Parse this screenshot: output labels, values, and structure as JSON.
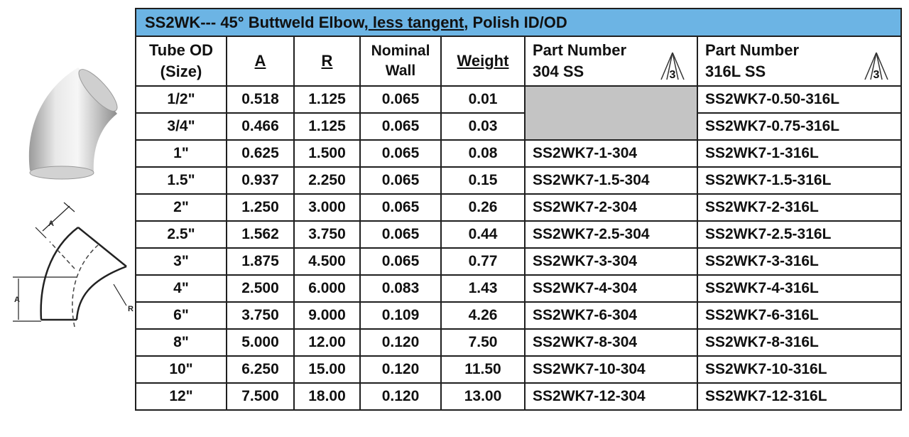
{
  "title": {
    "prefix": "SS2WK--- 45° Buttweld Elbow,",
    "underlined": " less tangent",
    "suffix": ", Polish ID/OD"
  },
  "headers": {
    "tube_od_line1": "Tube OD",
    "tube_od_line2": "(Size)",
    "a": "A",
    "r": "R",
    "wall_line1": "Nominal",
    "wall_line2": "Wall",
    "weight": "Weight",
    "pn304_line1": "Part Number",
    "pn304_line2": "304 SS",
    "pn316_line1": "Part Number",
    "pn316_line2": "316L SS",
    "a3_mark": "3"
  },
  "diagram_labels": {
    "a_top": "A",
    "a_left": "A",
    "r": "R"
  },
  "rows": [
    {
      "size": "1/2\"",
      "a": "0.518",
      "r": "1.125",
      "wall": "0.065",
      "weight": "0.01",
      "pn304": "",
      "pn316": "SS2WK7-0.50-316L"
    },
    {
      "size": "3/4\"",
      "a": "0.466",
      "r": "1.125",
      "wall": "0.065",
      "weight": "0.03",
      "pn304": "",
      "pn316": "SS2WK7-0.75-316L"
    },
    {
      "size": "1\"",
      "a": "0.625",
      "r": "1.500",
      "wall": "0.065",
      "weight": "0.08",
      "pn304": "SS2WK7-1-304",
      "pn316": "SS2WK7-1-316L"
    },
    {
      "size": "1.5\"",
      "a": "0.937",
      "r": "2.250",
      "wall": "0.065",
      "weight": "0.15",
      "pn304": "SS2WK7-1.5-304",
      "pn316": "SS2WK7-1.5-316L"
    },
    {
      "size": "2\"",
      "a": "1.250",
      "r": "3.000",
      "wall": "0.065",
      "weight": "0.26",
      "pn304": "SS2WK7-2-304",
      "pn316": "SS2WK7-2-316L"
    },
    {
      "size": "2.5\"",
      "a": "1.562",
      "r": "3.750",
      "wall": "0.065",
      "weight": "0.44",
      "pn304": "SS2WK7-2.5-304",
      "pn316": "SS2WK7-2.5-316L"
    },
    {
      "size": "3\"",
      "a": "1.875",
      "r": "4.500",
      "wall": "0.065",
      "weight": "0.77",
      "pn304": "SS2WK7-3-304",
      "pn316": "SS2WK7-3-316L"
    },
    {
      "size": "4\"",
      "a": "2.500",
      "r": "6.000",
      "wall": "0.083",
      "weight": "1.43",
      "pn304": "SS2WK7-4-304",
      "pn316": "SS2WK7-4-316L"
    },
    {
      "size": "6\"",
      "a": "3.750",
      "r": "9.000",
      "wall": "0.109",
      "weight": "4.26",
      "pn304": "SS2WK7-6-304",
      "pn316": "SS2WK7-6-316L"
    },
    {
      "size": "8\"",
      "a": "5.000",
      "r": "12.00",
      "wall": "0.120",
      "weight": "7.50",
      "pn304": "SS2WK7-8-304",
      "pn316": "SS2WK7-8-316L"
    },
    {
      "size": "10\"",
      "a": "6.250",
      "r": "15.00",
      "wall": "0.120",
      "weight": "11.50",
      "pn304": "SS2WK7-10-304",
      "pn316": "SS2WK7-10-316L"
    },
    {
      "size": "12\"",
      "a": "7.500",
      "r": "18.00",
      "wall": "0.120",
      "weight": "13.00",
      "pn304": "SS2WK7-12-304",
      "pn316": "SS2WK7-12-316L"
    }
  ],
  "colors": {
    "title_bg": "#6cb4e4",
    "empty_cell": "#c4c4c4"
  }
}
